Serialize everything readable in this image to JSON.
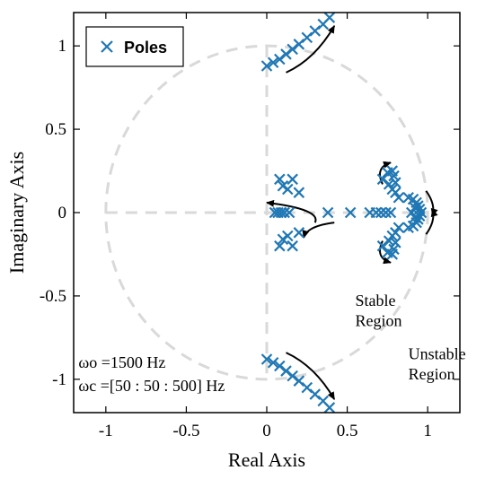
{
  "chart_data": {
    "type": "scatter",
    "xlabel": "Real Axis",
    "ylabel": "Imaginary Axis",
    "xlim": [
      -1.2,
      1.2
    ],
    "ylim": [
      -1.2,
      1.2
    ],
    "xticks": [
      -1,
      -0.5,
      0,
      0.5,
      1
    ],
    "xtick_labels": [
      "-1",
      "-0.5",
      "0",
      "0.5",
      "1"
    ],
    "yticks": [
      1,
      0.5,
      0,
      -0.5,
      -1
    ],
    "ytick_labels": [
      "1",
      "0.5",
      "0",
      "-0.5",
      "-1"
    ],
    "legend": {
      "label": "Poles",
      "location": "top-left"
    },
    "unit_circle": true,
    "grid": false,
    "colors": {
      "poles": "#1f77b4",
      "guides": "#d9d9d9",
      "arrows": "#000000"
    },
    "series": [
      {
        "name": "Poles",
        "marker": "x",
        "points": [
          [
            0.0,
            0.88
          ],
          [
            0.04,
            0.9
          ],
          [
            0.08,
            0.92
          ],
          [
            0.12,
            0.95
          ],
          [
            0.16,
            0.98
          ],
          [
            0.2,
            1.01
          ],
          [
            0.25,
            1.05
          ],
          [
            0.3,
            1.09
          ],
          [
            0.35,
            1.13
          ],
          [
            0.39,
            1.17
          ],
          [
            0.0,
            -0.88
          ],
          [
            0.04,
            -0.9
          ],
          [
            0.08,
            -0.92
          ],
          [
            0.12,
            -0.95
          ],
          [
            0.16,
            -0.98
          ],
          [
            0.2,
            -1.01
          ],
          [
            0.25,
            -1.05
          ],
          [
            0.3,
            -1.09
          ],
          [
            0.35,
            -1.13
          ],
          [
            0.39,
            -1.17
          ],
          [
            0.08,
            0.2
          ],
          [
            0.1,
            0.16
          ],
          [
            0.13,
            0.14
          ],
          [
            0.16,
            0.2
          ],
          [
            0.2,
            0.12
          ],
          [
            0.08,
            -0.2
          ],
          [
            0.1,
            -0.16
          ],
          [
            0.13,
            -0.14
          ],
          [
            0.16,
            -0.2
          ],
          [
            0.2,
            -0.12
          ],
          [
            0.05,
            0.0
          ],
          [
            0.07,
            0.0
          ],
          [
            0.09,
            0.0
          ],
          [
            0.11,
            0.0
          ],
          [
            0.14,
            0.0
          ],
          [
            0.38,
            0.0
          ],
          [
            0.52,
            0.0
          ],
          [
            0.64,
            0.0
          ],
          [
            0.68,
            0.0
          ],
          [
            0.71,
            0.0
          ],
          [
            0.74,
            0.0
          ],
          [
            0.77,
            0.0
          ],
          [
            0.72,
            0.2
          ],
          [
            0.75,
            0.24
          ],
          [
            0.78,
            0.25
          ],
          [
            0.79,
            0.22
          ],
          [
            0.8,
            0.18
          ],
          [
            0.76,
            0.17
          ],
          [
            0.78,
            0.14
          ],
          [
            0.8,
            0.12
          ],
          [
            0.82,
            0.09
          ],
          [
            0.72,
            -0.2
          ],
          [
            0.75,
            -0.24
          ],
          [
            0.78,
            -0.25
          ],
          [
            0.79,
            -0.22
          ],
          [
            0.8,
            -0.18
          ],
          [
            0.76,
            -0.17
          ],
          [
            0.78,
            -0.14
          ],
          [
            0.8,
            -0.12
          ],
          [
            0.82,
            -0.09
          ],
          [
            0.88,
            0.09
          ],
          [
            0.91,
            0.08
          ],
          [
            0.93,
            0.06
          ],
          [
            0.94,
            0.04
          ],
          [
            0.95,
            0.02
          ],
          [
            0.96,
            0.0
          ],
          [
            0.95,
            -0.02
          ],
          [
            0.94,
            -0.04
          ],
          [
            0.93,
            -0.06
          ],
          [
            0.91,
            -0.08
          ],
          [
            0.88,
            -0.09
          ],
          [
            0.9,
            0.0
          ],
          [
            0.92,
            0.03
          ],
          [
            0.92,
            -0.03
          ]
        ]
      }
    ],
    "annotations": [
      {
        "text": "Stable",
        "x": 0.55,
        "y": -0.56
      },
      {
        "text": "Region",
        "x": 0.55,
        "y": -0.68
      },
      {
        "text": "Unstable",
        "x": 0.88,
        "y": -0.88
      },
      {
        "text": "Region",
        "x": 0.88,
        "y": -1.0
      },
      {
        "text": "ωo =1500 Hz",
        "x": -1.17,
        "y": -0.93
      },
      {
        "text": "ωc =[50 : 50 : 500] Hz",
        "x": -1.17,
        "y": -1.07
      }
    ]
  }
}
